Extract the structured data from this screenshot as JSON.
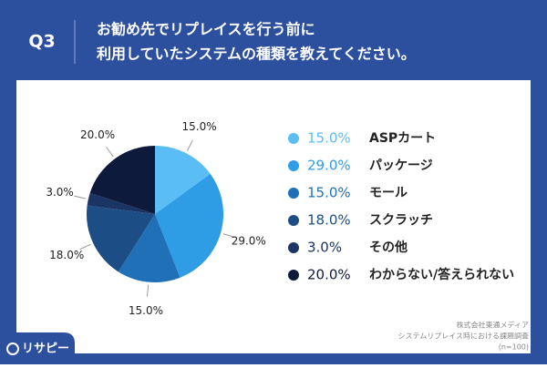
{
  "header": {
    "number": "Q3",
    "title_lines": [
      "お勧め先でリプレイスを行う前に",
      "利用していたシステムの種類を教えてください。"
    ]
  },
  "chart_data": {
    "type": "pie",
    "categories": [
      "ASPカート",
      "パッケージ",
      "モール",
      "スクラッチ",
      "その他",
      "わからない/答えられない"
    ],
    "values": [
      15,
      29,
      15,
      18,
      3,
      20
    ],
    "value_labels": [
      "15.0%",
      "29.0%",
      "15.0%",
      "18.0%",
      "3.0%",
      "20.0%"
    ],
    "colors": [
      "#5bbdf5",
      "#2f9ce6",
      "#1f70b6",
      "#1c4d85",
      "#1a3464",
      "#0e1a3c"
    ],
    "start": "top",
    "direction": "clockwise"
  },
  "source": {
    "lines": [
      "株式会社東通メディア",
      "システムリプレイス時における課題調査",
      "(n=100)"
    ]
  },
  "logo": "リサピー"
}
